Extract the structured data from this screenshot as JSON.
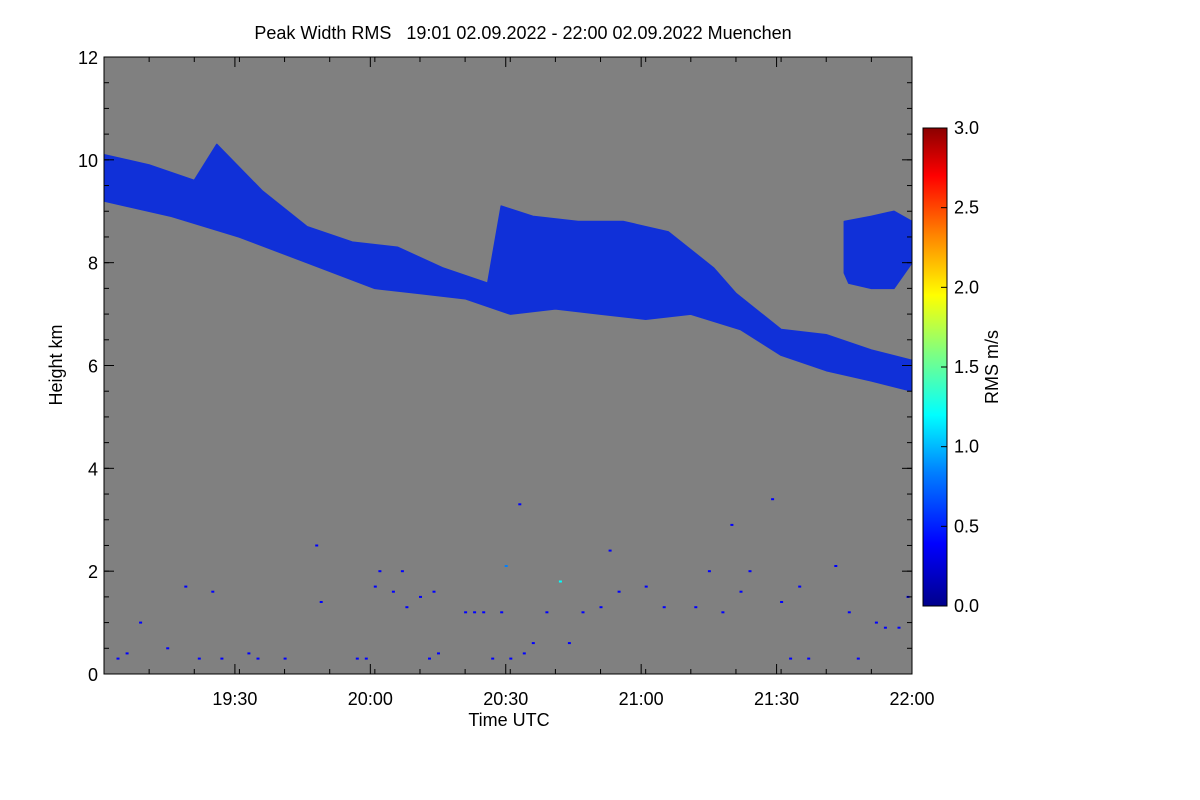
{
  "chart_data": {
    "type": "heatmap",
    "title": "Peak Width RMS   19:01 02.09.2022 - 22:00 02.09.2022 Muenchen",
    "xlabel": "Time UTC",
    "ylabel": "Height km",
    "xlim": [
      "19:01",
      "22:00"
    ],
    "ylim": [
      0,
      12
    ],
    "x_tick_labels": [
      "19:30",
      "20:00",
      "20:30",
      "21:00",
      "21:30",
      "22:00"
    ],
    "x_tick_values": [
      29,
      59,
      89,
      119,
      149,
      179
    ],
    "y_ticks": [
      0,
      2,
      4,
      6,
      8,
      10,
      12
    ],
    "background_color": "#808080",
    "colorbar": {
      "label": "RMS m/s",
      "range": [
        0.0,
        3.0
      ],
      "tick_labels": [
        "0.0",
        "0.5",
        "1.0",
        "1.5",
        "2.0",
        "2.5",
        "3.0"
      ],
      "tick_values": [
        0.0,
        0.5,
        1.0,
        1.5,
        2.0,
        2.5,
        3.0
      ],
      "colormap": [
        "#00008b",
        "#0000ff",
        "#0080ff",
        "#00ffff",
        "#80ff80",
        "#ffff00",
        "#ff8000",
        "#ff0000",
        "#8b0000"
      ]
    },
    "cloud_layers": [
      {
        "name": "main cirrus band",
        "value_ms": 0.3,
        "color": "#1030d8",
        "top": [
          [
            0,
            10.1
          ],
          [
            10,
            9.9
          ],
          [
            20,
            9.6
          ],
          [
            25,
            10.3
          ],
          [
            35,
            9.4
          ],
          [
            45,
            8.7
          ],
          [
            55,
            8.4
          ],
          [
            65,
            8.3
          ],
          [
            75,
            7.9
          ],
          [
            85,
            7.6
          ],
          [
            88,
            9.1
          ],
          [
            95,
            8.9
          ],
          [
            105,
            8.8
          ],
          [
            115,
            8.8
          ],
          [
            125,
            8.6
          ],
          [
            135,
            7.9
          ],
          [
            140,
            7.4
          ],
          [
            150,
            6.7
          ],
          [
            160,
            6.6
          ],
          [
            170,
            6.3
          ],
          [
            179,
            6.1
          ]
        ],
        "bottom": [
          [
            179,
            5.5
          ],
          [
            170,
            5.7
          ],
          [
            160,
            5.9
          ],
          [
            150,
            6.2
          ],
          [
            141,
            6.7
          ],
          [
            130,
            7.0
          ],
          [
            120,
            6.9
          ],
          [
            110,
            7.0
          ],
          [
            100,
            7.1
          ],
          [
            90,
            7.0
          ],
          [
            80,
            7.3
          ],
          [
            70,
            7.4
          ],
          [
            60,
            7.5
          ],
          [
            45,
            8.0
          ],
          [
            30,
            8.5
          ],
          [
            15,
            8.9
          ],
          [
            0,
            9.2
          ]
        ]
      },
      {
        "name": "isolated patch",
        "value_ms": 0.3,
        "color": "#1030d8",
        "top": [
          [
            164,
            8.8
          ],
          [
            170,
            8.9
          ],
          [
            175,
            9.0
          ],
          [
            179,
            8.8
          ]
        ],
        "bottom": [
          [
            179,
            8.0
          ],
          [
            175,
            7.5
          ],
          [
            170,
            7.5
          ],
          [
            165,
            7.6
          ],
          [
            164,
            7.8
          ]
        ]
      }
    ],
    "sparse_echoes": [
      [
        3,
        0.3,
        0.2
      ],
      [
        5,
        0.4,
        0.2
      ],
      [
        8,
        1.0,
        0.3
      ],
      [
        14,
        0.5,
        0.2
      ],
      [
        18,
        1.7,
        0.3
      ],
      [
        21,
        0.3,
        0.2
      ],
      [
        24,
        1.6,
        0.3
      ],
      [
        26,
        0.3,
        0.2
      ],
      [
        32,
        0.4,
        0.2
      ],
      [
        34,
        0.3,
        0.2
      ],
      [
        40,
        0.3,
        0.2
      ],
      [
        47,
        2.5,
        0.3
      ],
      [
        48,
        1.4,
        0.4
      ],
      [
        56,
        0.3,
        0.2
      ],
      [
        58,
        0.3,
        0.3
      ],
      [
        60,
        1.7,
        0.3
      ],
      [
        61,
        2.0,
        0.3
      ],
      [
        64,
        1.6,
        0.2
      ],
      [
        66,
        2.0,
        0.3
      ],
      [
        67,
        1.3,
        0.2
      ],
      [
        70,
        1.5,
        0.3
      ],
      [
        72,
        0.3,
        0.2
      ],
      [
        73,
        1.6,
        0.4
      ],
      [
        74,
        0.4,
        0.2
      ],
      [
        80,
        1.2,
        0.3
      ],
      [
        82,
        1.2,
        0.2
      ],
      [
        84,
        1.2,
        0.3
      ],
      [
        86,
        0.3,
        0.2
      ],
      [
        88,
        1.2,
        0.3
      ],
      [
        89,
        2.1,
        0.6
      ],
      [
        90,
        0.3,
        0.2
      ],
      [
        92,
        3.3,
        0.2
      ],
      [
        93,
        0.4,
        0.2
      ],
      [
        95,
        0.6,
        0.3
      ],
      [
        98,
        1.2,
        0.2
      ],
      [
        101,
        1.8,
        1.2
      ],
      [
        103,
        0.6,
        0.2
      ],
      [
        106,
        1.2,
        0.3
      ],
      [
        110,
        1.3,
        0.3
      ],
      [
        112,
        2.4,
        0.3
      ],
      [
        114,
        1.6,
        0.2
      ],
      [
        120,
        1.7,
        0.3
      ],
      [
        124,
        1.3,
        0.2
      ],
      [
        131,
        1.3,
        0.4
      ],
      [
        134,
        2.0,
        0.3
      ],
      [
        137,
        1.2,
        0.3
      ],
      [
        139,
        2.9,
        0.3
      ],
      [
        141,
        1.6,
        0.2
      ],
      [
        143,
        2.0,
        0.3
      ],
      [
        148,
        3.4,
        0.3
      ],
      [
        150,
        1.4,
        0.5
      ],
      [
        152,
        0.3,
        0.3
      ],
      [
        154,
        1.7,
        0.3
      ],
      [
        156,
        0.3,
        0.2
      ],
      [
        162,
        2.1,
        0.3
      ],
      [
        165,
        1.2,
        0.2
      ],
      [
        167,
        0.3,
        0.2
      ],
      [
        171,
        1.0,
        0.2
      ],
      [
        173,
        0.9,
        0.2
      ],
      [
        176,
        0.9,
        0.2
      ],
      [
        178,
        1.5,
        0.3
      ]
    ]
  }
}
